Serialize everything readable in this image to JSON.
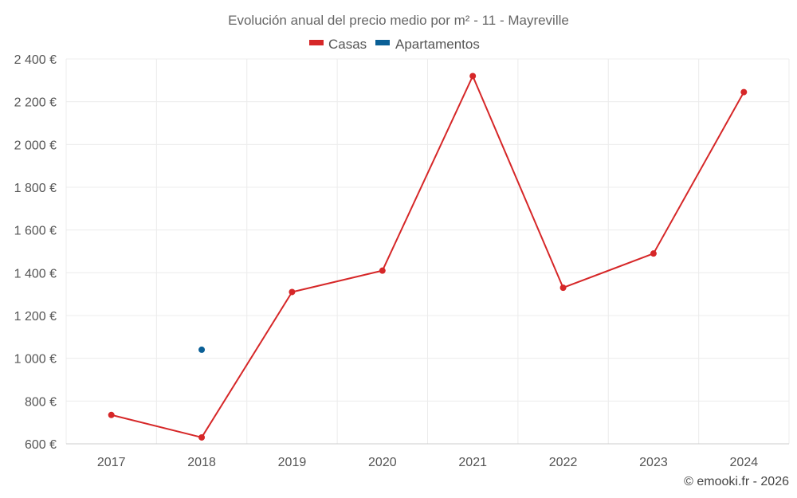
{
  "chart_data": {
    "type": "line",
    "title": "Evolución anual del precio medio por m² - 11 - Mayreville",
    "categories": [
      "2017",
      "2018",
      "2019",
      "2020",
      "2021",
      "2022",
      "2023",
      "2024"
    ],
    "series": [
      {
        "name": "Casas",
        "color": "#d62728",
        "values": [
          735,
          630,
          1310,
          1410,
          2320,
          1330,
          1490,
          2245
        ]
      },
      {
        "name": "Apartamentos",
        "color": "#0a5f96",
        "values": [
          null,
          1040,
          null,
          null,
          null,
          null,
          null,
          null
        ]
      }
    ],
    "ylim": [
      600,
      2400
    ],
    "yticks": [
      600,
      800,
      1000,
      1200,
      1400,
      1600,
      1800,
      2000,
      2200,
      2400
    ],
    "ytick_labels": [
      "600 €",
      "800 €",
      "1 000 €",
      "1 200 €",
      "1 400 €",
      "1 600 €",
      "1 800 €",
      "2 000 €",
      "2 200 €",
      "2 400 €"
    ],
    "legend_position": "top-center",
    "grid": true,
    "credit": "© emooki.fr - 2026"
  }
}
